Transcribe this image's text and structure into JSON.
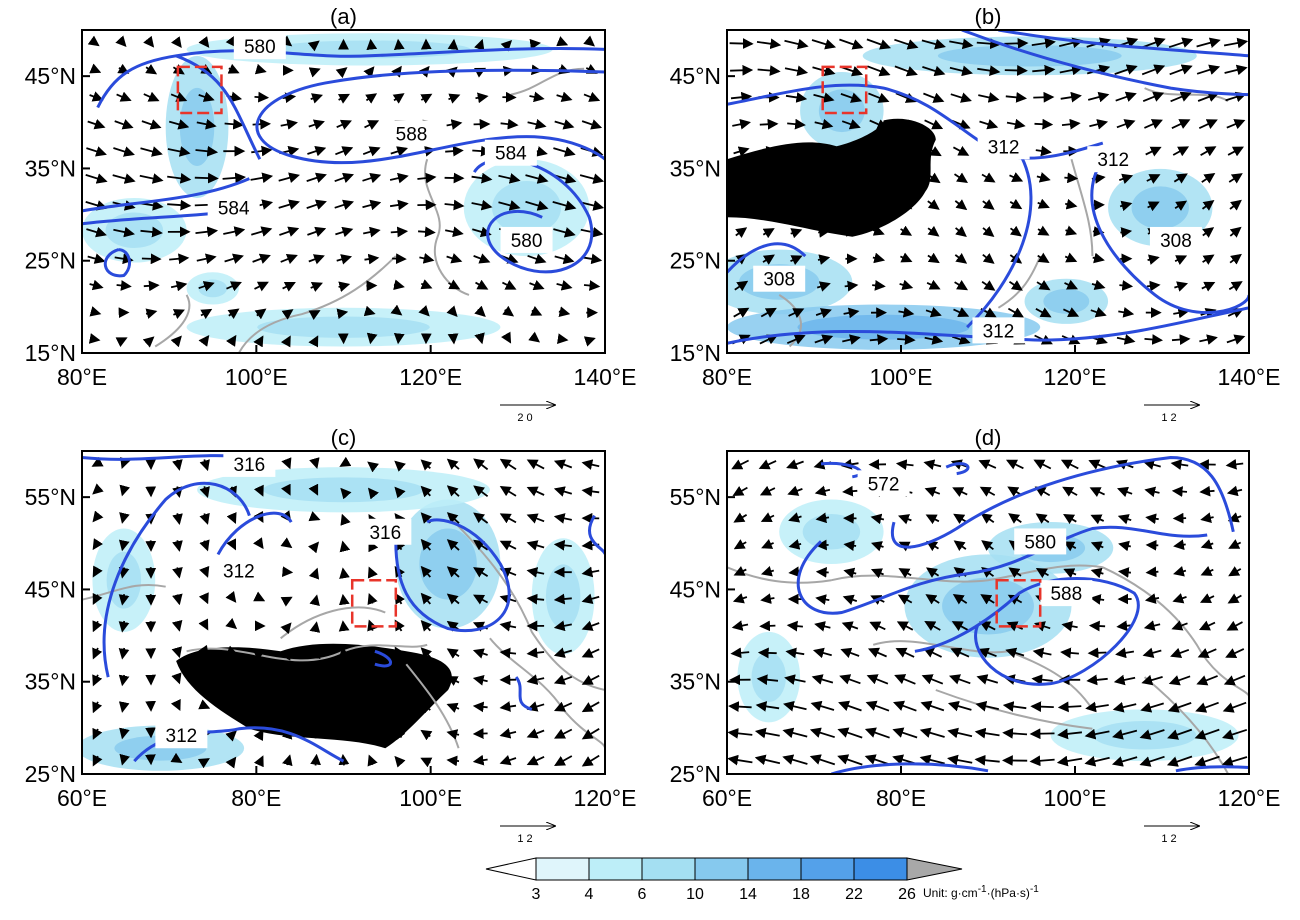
{
  "colorbar": {
    "levels": [
      "3",
      "4",
      "6",
      "10",
      "14",
      "18",
      "22",
      "26"
    ],
    "colors": [
      "#ffffff",
      "#dff5fb",
      "#bdeef8",
      "#a4dff2",
      "#86c9ee",
      "#6ab4ec",
      "#54a1ea",
      "#3c8ee6",
      "#2a7ee0",
      "#a8a8a8"
    ],
    "unit_text": "Unit: g·cm",
    "unit_sup1": "-1",
    "unit_mid": "·(hPa·s)",
    "unit_sup2": "-1"
  },
  "chart_data": [
    {
      "type": "map",
      "title": "(a)",
      "lon_range": [
        80,
        140
      ],
      "lat_range": [
        15,
        50
      ],
      "x_ticks": [
        "80°E",
        "100°E",
        "120°E",
        "140°E"
      ],
      "y_ticks": [
        "15°N",
        "25°N",
        "35°N",
        "45°N"
      ],
      "contour_labels": [
        "580",
        "588",
        "584",
        "584",
        "580"
      ],
      "reference_vector": "2 0",
      "study_box": {
        "lon": [
          91,
          96
        ],
        "lat": [
          41,
          46
        ]
      },
      "terrain_mask": false
    },
    {
      "type": "map",
      "title": "(b)",
      "lon_range": [
        80,
        140
      ],
      "lat_range": [
        15,
        50
      ],
      "x_ticks": [
        "80°E",
        "100°E",
        "120°E",
        "140°E"
      ],
      "y_ticks": [
        "15°N",
        "25°N",
        "35°N",
        "45°N"
      ],
      "contour_labels": [
        "312",
        "312",
        "308",
        "308",
        "312"
      ],
      "reference_vector": "1 2",
      "study_box": {
        "lon": [
          91,
          96
        ],
        "lat": [
          41,
          46
        ]
      },
      "terrain_mask": true
    },
    {
      "type": "map",
      "title": "(c)",
      "lon_range": [
        60,
        120
      ],
      "lat_range": [
        25,
        60
      ],
      "x_ticks": [
        "60°E",
        "80°E",
        "100°E",
        "120°E"
      ],
      "y_ticks": [
        "25°N",
        "35°N",
        "45°N",
        "55°N"
      ],
      "contour_labels": [
        "316",
        "316",
        "312",
        "312"
      ],
      "reference_vector": "1 2",
      "study_box": {
        "lon": [
          91,
          96
        ],
        "lat": [
          41,
          46
        ]
      },
      "terrain_mask": true
    },
    {
      "type": "map",
      "title": "(d)",
      "lon_range": [
        60,
        120
      ],
      "lat_range": [
        25,
        60
      ],
      "x_ticks": [
        "60°E",
        "80°E",
        "100°E",
        "120°E"
      ],
      "y_ticks": [
        "25°N",
        "35°N",
        "45°N",
        "55°N"
      ],
      "contour_labels": [
        "572",
        "580",
        "588"
      ],
      "reference_vector": "1 2",
      "study_box": {
        "lon": [
          91,
          96
        ],
        "lat": [
          41,
          46
        ]
      },
      "terrain_mask": false
    }
  ]
}
